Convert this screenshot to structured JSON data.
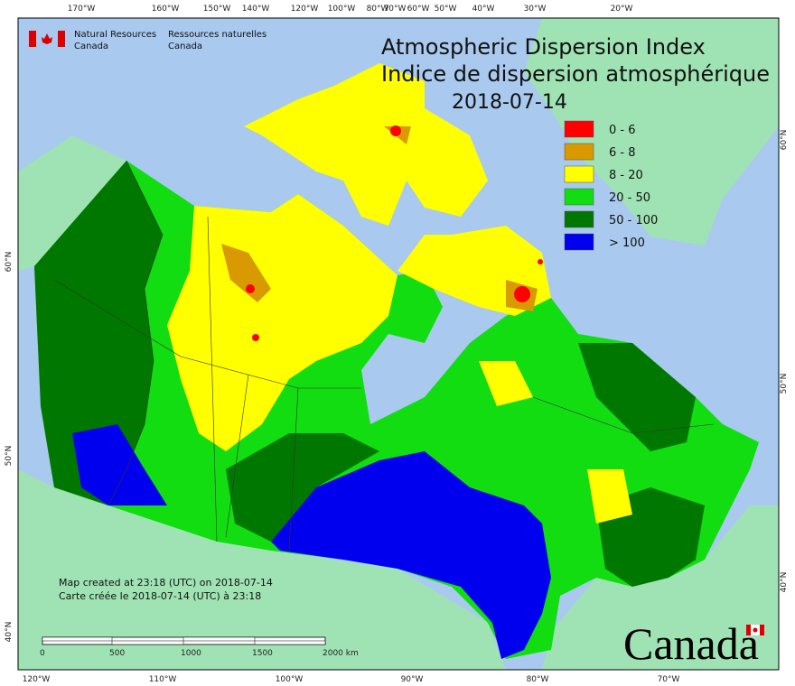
{
  "header": {
    "agency_en": [
      "Natural Resources",
      "Canada"
    ],
    "agency_fr": [
      "Ressources naturelles",
      "Canada"
    ]
  },
  "title": {
    "en": "Atmospheric Dispersion Index",
    "fr": "Indice de dispersion atmosphérique",
    "date": "2018-07-14"
  },
  "legend": [
    {
      "label": "0 - 6",
      "color": "#ff0000"
    },
    {
      "label": "6 - 8",
      "color": "#d89a00"
    },
    {
      "label": "8 - 20",
      "color": "#ffff00"
    },
    {
      "label": "20 - 50",
      "color": "#11dd11"
    },
    {
      "label": "50 - 100",
      "color": "#007800"
    },
    {
      "label": "> 100",
      "color": "#0000ee"
    }
  ],
  "credits": [
    "Map created at 23:18 (UTC) on 2018-07-14",
    "Carte créée le 2018-07-14 (UTC) à 23:18"
  ],
  "scale_bar": [
    "0",
    "500",
    "1000",
    "1500",
    "2000 km"
  ],
  "graticule": {
    "top": [
      "170°W",
      "160°W",
      "150°W",
      "140°W",
      "120°W",
      "100°W",
      "80°W",
      "70°W",
      "60°W",
      "50°W",
      "40°W",
      "30°W",
      "20°W"
    ],
    "bottom": [
      "120°W",
      "110°W",
      "100°W",
      "90°W",
      "80°W",
      "70°W"
    ],
    "left": [
      "60°N",
      "50°N",
      "40°N"
    ],
    "right": [
      "60°N",
      "50°N",
      "40°N"
    ]
  },
  "wordmark": "Canada"
}
